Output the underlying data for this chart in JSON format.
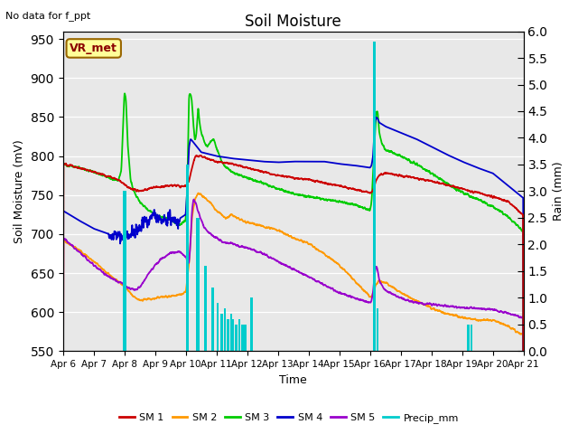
{
  "title": "Soil Moisture",
  "subtitle": "No data for f_ppt",
  "ylabel_left": "Soil Moisture (mV)",
  "ylabel_right": "Rain (mm)",
  "xlabel": "Time",
  "station_label": "VR_met",
  "ylim_left": [
    550,
    960
  ],
  "ylim_right": [
    0.0,
    6.0
  ],
  "yticks_left": [
    550,
    600,
    650,
    700,
    750,
    800,
    850,
    900,
    950
  ],
  "yticks_right": [
    0.0,
    0.5,
    1.0,
    1.5,
    2.0,
    2.5,
    3.0,
    3.5,
    4.0,
    4.5,
    5.0,
    5.5,
    6.0
  ],
  "colors": {
    "SM1": "#cc0000",
    "SM2": "#ff9900",
    "SM3": "#00cc00",
    "SM4": "#0000cc",
    "SM5": "#9900cc",
    "Precip": "#00cccc",
    "background": "#e8e8e8",
    "station_box_bg": "#ffff99",
    "station_box_border": "#996600"
  },
  "xtick_labels": [
    "Apr 6",
    "Apr 7",
    "Apr 8",
    "Apr 9",
    "Apr 10",
    "Apr 11",
    "Apr 12",
    "Apr 13",
    "Apr 14",
    "Apr 15",
    "Apr 16",
    "Apr 17",
    "Apr 18",
    "Apr 19",
    "Apr 20",
    "Apr 21"
  ],
  "xtick_positions": [
    0,
    1,
    2,
    3,
    4,
    5,
    6,
    7,
    8,
    9,
    10,
    11,
    12,
    13,
    14,
    15
  ]
}
